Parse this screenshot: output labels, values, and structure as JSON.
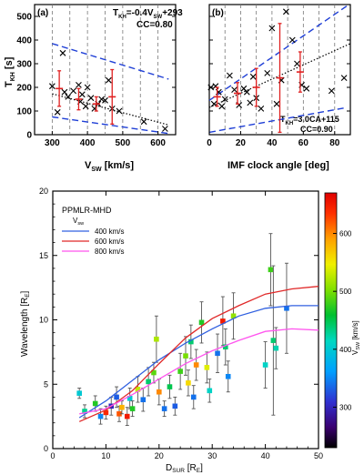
{
  "chart_data": [
    {
      "type": "scatter",
      "panel_label": "(a)",
      "xlabel_main": "V",
      "xlabel_sub": "SW",
      "xlabel_units": "[km/s]",
      "ylabel_main": "T",
      "ylabel_sub": "KH",
      "ylabel_units": "[s]",
      "xlim": [
        250,
        650
      ],
      "ylim": [
        0,
        550
      ],
      "xticks": [
        "300",
        "400",
        "500",
        "600"
      ],
      "xtick_values": [
        300,
        400,
        500,
        600
      ],
      "yticks": [
        "0",
        "100",
        "200",
        "300",
        "400",
        "500"
      ],
      "ytick_values": [
        0,
        100,
        200,
        300,
        400,
        500
      ],
      "vlines": [
        300,
        350,
        400,
        450,
        500,
        550,
        600
      ],
      "fit_text": "T_KH = -0.4V_SW+293",
      "fit_segments": [
        {
          "main": "T",
          "sub": "KH",
          "tail": "=-0.4V"
        },
        {
          "main": "",
          "sub": "SW",
          "tail": "+293"
        }
      ],
      "cc_text": "CC=0.80",
      "fit_line": {
        "slope": -0.4,
        "intercept": 293,
        "x": [
          300,
          630
        ]
      },
      "envelope_upper": [
        [
          300,
          385
        ],
        [
          630,
          235
        ]
      ],
      "envelope_lower": [
        [
          300,
          75
        ],
        [
          630,
          5
        ]
      ],
      "points": [
        {
          "x": 300,
          "y": 205
        },
        {
          "x": 315,
          "y": 95
        },
        {
          "x": 330,
          "y": 345
        },
        {
          "x": 335,
          "y": 180
        },
        {
          "x": 345,
          "y": 160
        },
        {
          "x": 360,
          "y": 185
        },
        {
          "x": 375,
          "y": 210
        },
        {
          "x": 380,
          "y": 140
        },
        {
          "x": 385,
          "y": 170
        },
        {
          "x": 395,
          "y": 120
        },
        {
          "x": 400,
          "y": 200
        },
        {
          "x": 410,
          "y": 155
        },
        {
          "x": 420,
          "y": 110
        },
        {
          "x": 430,
          "y": 130
        },
        {
          "x": 440,
          "y": 150
        },
        {
          "x": 450,
          "y": 145
        },
        {
          "x": 460,
          "y": 230
        },
        {
          "x": 470,
          "y": 110
        },
        {
          "x": 490,
          "y": 100
        },
        {
          "x": 560,
          "y": 55
        },
        {
          "x": 620,
          "y": 25
        }
      ],
      "binned": [
        {
          "x": 320,
          "y": 195,
          "err": 75
        },
        {
          "x": 375,
          "y": 150,
          "err": 45
        },
        {
          "x": 425,
          "y": 130,
          "err": 30
        },
        {
          "x": 470,
          "y": 160,
          "err": 115
        }
      ],
      "colors": {
        "points": "#000000",
        "binned": "#e02020",
        "envelope": "#1f3fd6",
        "fit": "#000000"
      }
    },
    {
      "type": "scatter",
      "panel_label": "(b)",
      "xlabel": "IMF clock angle [deg]",
      "xlim": [
        0,
        90
      ],
      "ylim": [
        0,
        550
      ],
      "xticks": [
        "0",
        "20",
        "40",
        "60",
        "80"
      ],
      "xtick_values": [
        0,
        20,
        40,
        60,
        80
      ],
      "vlines": [
        10,
        20,
        30,
        40,
        50,
        60,
        70,
        80
      ],
      "fit_text": "T_KH = 3.0CA+115",
      "fit_segments": [
        {
          "main": "T",
          "sub": "KH",
          "tail": "=3.0CA+115"
        }
      ],
      "cc_text": "CC=0.90",
      "fit_line": {
        "slope": 3.0,
        "intercept": 115,
        "x": [
          0,
          90
        ]
      },
      "envelope_upper": [
        [
          0,
          145
        ],
        [
          88,
          545
        ]
      ],
      "envelope_lower": [
        [
          0,
          10
        ],
        [
          88,
          115
        ]
      ],
      "points": [
        {
          "x": 1,
          "y": 200
        },
        {
          "x": 3,
          "y": 130
        },
        {
          "x": 4,
          "y": 205
        },
        {
          "x": 6,
          "y": 180
        },
        {
          "x": 8,
          "y": 120
        },
        {
          "x": 10,
          "y": 150
        },
        {
          "x": 13,
          "y": 250
        },
        {
          "x": 16,
          "y": 190
        },
        {
          "x": 19,
          "y": 125
        },
        {
          "x": 22,
          "y": 195
        },
        {
          "x": 24,
          "y": 180
        },
        {
          "x": 26,
          "y": 135
        },
        {
          "x": 28,
          "y": 245
        },
        {
          "x": 30,
          "y": 155
        },
        {
          "x": 33,
          "y": 110
        },
        {
          "x": 37,
          "y": 260
        },
        {
          "x": 40,
          "y": 450
        },
        {
          "x": 43,
          "y": 130
        },
        {
          "x": 46,
          "y": 230
        },
        {
          "x": 49,
          "y": 520
        },
        {
          "x": 53,
          "y": 400
        },
        {
          "x": 56,
          "y": 300
        },
        {
          "x": 59,
          "y": 210
        },
        {
          "x": 62,
          "y": 195
        },
        {
          "x": 78,
          "y": 185
        },
        {
          "x": 86,
          "y": 240
        }
      ],
      "binned": [
        {
          "x": 5,
          "y": 160,
          "err": 40
        },
        {
          "x": 18,
          "y": 175,
          "err": 45
        },
        {
          "x": 30,
          "y": 200,
          "err": 80
        },
        {
          "x": 45,
          "y": 240,
          "err": 230
        },
        {
          "x": 58,
          "y": 265,
          "err": 85
        }
      ],
      "colors": {
        "points": "#000000",
        "binned": "#e02020",
        "envelope": "#1f3fd6",
        "fit": "#000000"
      }
    },
    {
      "type": "scatter",
      "title": "PPMLR-MHD",
      "xlabel_main": "D",
      "xlabel_sub": "SUR",
      "xlabel_units": "[R",
      "xlabel_units_sub": "E",
      "ylabel_main": "Wavelength [R",
      "ylabel_sub": "E",
      "xlim": [
        0,
        50
      ],
      "ylim": [
        0,
        20
      ],
      "xticks": [
        "0",
        "10",
        "20",
        "30",
        "40",
        "50"
      ],
      "xtick_values": [
        0,
        10,
        20,
        30,
        40,
        50
      ],
      "yticks": [
        "0",
        "5",
        "10",
        "15",
        "20"
      ],
      "ytick_values": [
        0,
        5,
        10,
        15,
        20
      ],
      "legend_title_main": "V",
      "legend_title_sub": "sw",
      "series": [
        {
          "name": "400 km/s",
          "color": "#3060e0",
          "x": [
            5,
            10,
            15,
            20,
            25,
            30,
            35,
            40,
            45,
            50
          ],
          "y": [
            2.4,
            3.7,
            5.3,
            6.9,
            8.2,
            9.3,
            10.3,
            10.9,
            11.1,
            11.1
          ]
        },
        {
          "name": "600 km/s",
          "color": "#e02828",
          "x": [
            5,
            10,
            15,
            20,
            25,
            30,
            35,
            40,
            45,
            50
          ],
          "y": [
            2.1,
            3.0,
            4.5,
            6.6,
            8.6,
            10.1,
            11.1,
            12.0,
            12.4,
            12.6
          ]
        },
        {
          "name": "800 km/s",
          "color": "#ff55ee",
          "x": [
            5,
            10,
            15,
            20,
            25,
            30,
            35,
            40,
            45,
            50
          ],
          "y": [
            2.7,
            3.1,
            4.2,
            5.4,
            6.6,
            7.6,
            8.4,
            9.1,
            9.3,
            9.2
          ]
        }
      ],
      "points": [
        {
          "x": 5,
          "y": 4.3,
          "err": 0.4,
          "v": 400
        },
        {
          "x": 6,
          "y": 2.9,
          "err": 0.5,
          "v": 430
        },
        {
          "x": 8,
          "y": 3.5,
          "err": 0.6,
          "v": 470
        },
        {
          "x": 9,
          "y": 2.5,
          "err": 0.6,
          "v": 350
        },
        {
          "x": 10,
          "y": 2.8,
          "err": 0.5,
          "v": 640
        },
        {
          "x": 11,
          "y": 3.3,
          "err": 0.7,
          "v": 300
        },
        {
          "x": 12,
          "y": 4.0,
          "err": 0.8,
          "v": 330
        },
        {
          "x": 12.5,
          "y": 2.7,
          "err": 0.6,
          "v": 620
        },
        {
          "x": 13,
          "y": 3.2,
          "err": 0.5,
          "v": 580
        },
        {
          "x": 14,
          "y": 2.5,
          "err": 0.7,
          "v": 650
        },
        {
          "x": 14.5,
          "y": 3.9,
          "err": 0.8,
          "v": 400
        },
        {
          "x": 15,
          "y": 3.1,
          "err": 0.6,
          "v": 470
        },
        {
          "x": 16,
          "y": 4.6,
          "err": 1.0,
          "v": 530
        },
        {
          "x": 17,
          "y": 3.8,
          "err": 0.9,
          "v": 340
        },
        {
          "x": 18,
          "y": 5.2,
          "err": 1.1,
          "v": 440
        },
        {
          "x": 19,
          "y": 5.9,
          "err": 0.8,
          "v": 490
        },
        {
          "x": 19.5,
          "y": 8.5,
          "err": 1.8,
          "v": 520
        },
        {
          "x": 20,
          "y": 4.4,
          "err": 1.0,
          "v": 600
        },
        {
          "x": 21,
          "y": 3.1,
          "err": 0.6,
          "v": 340
        },
        {
          "x": 22,
          "y": 4.8,
          "err": 0.9,
          "v": 450
        },
        {
          "x": 23,
          "y": 3.3,
          "err": 0.7,
          "v": 330
        },
        {
          "x": 24,
          "y": 6.0,
          "err": 1.4,
          "v": 480
        },
        {
          "x": 25,
          "y": 7.2,
          "err": 1.5,
          "v": 500
        },
        {
          "x": 25.5,
          "y": 5.1,
          "err": 1.0,
          "v": 560
        },
        {
          "x": 26,
          "y": 8.3,
          "err": 1.3,
          "v": 440
        },
        {
          "x": 26.5,
          "y": 4.0,
          "err": 0.9,
          "v": 340
        },
        {
          "x": 27,
          "y": 6.5,
          "err": 1.2,
          "v": 600
        },
        {
          "x": 28,
          "y": 9.8,
          "err": 1.6,
          "v": 470
        },
        {
          "x": 29,
          "y": 6.3,
          "err": 1.2,
          "v": 540
        },
        {
          "x": 29.5,
          "y": 4.5,
          "err": 0.9,
          "v": 410
        },
        {
          "x": 31,
          "y": 7.4,
          "err": 1.5,
          "v": 340
        },
        {
          "x": 32,
          "y": 9.9,
          "err": 1.9,
          "v": 650
        },
        {
          "x": 32.5,
          "y": 7.9,
          "err": 1.4,
          "v": 440
        },
        {
          "x": 33,
          "y": 5.6,
          "err": 1.2,
          "v": 350
        },
        {
          "x": 34,
          "y": 10.3,
          "err": 1.8,
          "v": 510
        },
        {
          "x": 40,
          "y": 6.5,
          "err": 1.8,
          "v": 410
        },
        {
          "x": 41,
          "y": 13.9,
          "err": 2.8,
          "v": 480
        },
        {
          "x": 41.5,
          "y": 8.4,
          "err": 5.8,
          "v": 440
        },
        {
          "x": 42,
          "y": 7.8,
          "err": 1.6,
          "v": 420
        },
        {
          "x": 44,
          "y": 10.9,
          "err": 3.5,
          "v": 340
        }
      ],
      "colorbar": {
        "label_main": "V",
        "label_sub": "SW",
        "label_units": "[km/s]",
        "range": [
          230,
          670
        ],
        "ticks": [
          "300",
          "400",
          "500",
          "600"
        ],
        "tick_values": [
          300,
          400,
          500,
          600
        ]
      }
    }
  ]
}
